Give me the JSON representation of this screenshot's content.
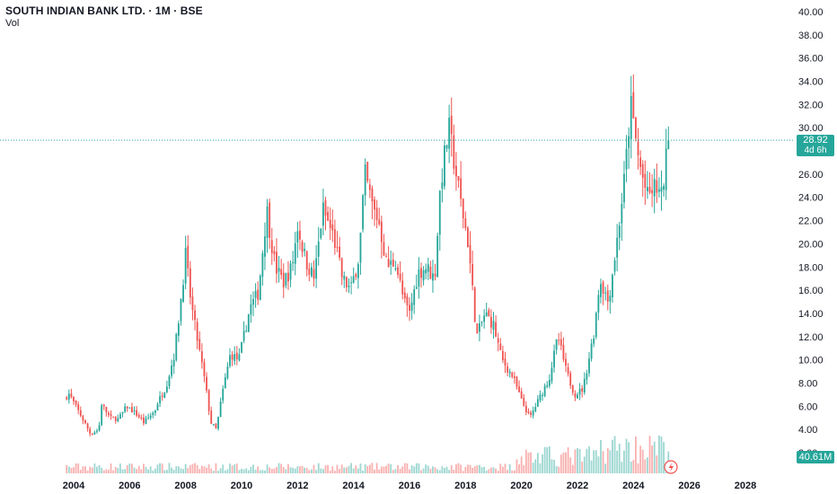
{
  "header": {
    "title": "SOUTH INDIAN BANK LTD. · 1M · BSE",
    "volume_label": "Vol"
  },
  "price_badge": {
    "price": "28.92",
    "countdown": "4d 6h"
  },
  "volume_badge": {
    "value": "40.61M"
  },
  "colors": {
    "up": "#26a69a",
    "down": "#ef5350",
    "price_line": "#26a69a"
  },
  "chart_data": {
    "type": "candlestick",
    "symbol": "SOUTH INDIAN BANK LTD.",
    "interval": "1M",
    "exchange": "BSE",
    "current_price": 28.92,
    "current_volume": "40.61M",
    "y_ticks": [
      "40.00",
      "38.00",
      "36.00",
      "34.00",
      "32.00",
      "30.00",
      "26.00",
      "24.00",
      "22.00",
      "20.00",
      "18.00",
      "16.00",
      "14.00",
      "12.00",
      "10.00",
      "8.00",
      "6.00",
      "4.00",
      "2.00"
    ],
    "y_range": [
      2,
      40
    ],
    "x_ticks": [
      "2004",
      "2006",
      "2008",
      "2010",
      "2012",
      "2014",
      "2016",
      "2018",
      "2020",
      "2022",
      "2024",
      "2026",
      "2028"
    ],
    "x_range": [
      2003.75,
      2029.3
    ],
    "price_path": [
      [
        2003.5,
        5.3
      ],
      [
        2003.8,
        7.2
      ],
      [
        2004.3,
        5.0
      ],
      [
        2004.6,
        3.6
      ],
      [
        2004.9,
        4.0
      ],
      [
        2005.0,
        6.2
      ],
      [
        2005.3,
        5.0
      ],
      [
        2005.6,
        4.9
      ],
      [
        2005.9,
        6.0
      ],
      [
        2006.3,
        5.2
      ],
      [
        2006.5,
        4.6
      ],
      [
        2006.9,
        5.6
      ],
      [
        2007.0,
        6.3
      ],
      [
        2007.3,
        7.7
      ],
      [
        2007.6,
        10.5
      ],
      [
        2007.8,
        14.5
      ],
      [
        2008.0,
        19.0
      ],
      [
        2008.2,
        14.8
      ],
      [
        2008.4,
        12.0
      ],
      [
        2008.7,
        8.0
      ],
      [
        2008.9,
        4.6
      ],
      [
        2009.1,
        4.0
      ],
      [
        2009.3,
        7.0
      ],
      [
        2009.6,
        10.5
      ],
      [
        2009.9,
        10.0
      ],
      [
        2010.3,
        14.5
      ],
      [
        2010.6,
        15.8
      ],
      [
        2010.9,
        23.0
      ],
      [
        2011.2,
        18.0
      ],
      [
        2011.5,
        16.7
      ],
      [
        2011.8,
        18.0
      ],
      [
        2012.0,
        21.5
      ],
      [
        2012.3,
        18.5
      ],
      [
        2012.6,
        17.0
      ],
      [
        2012.9,
        23.0
      ],
      [
        2013.3,
        20.5
      ],
      [
        2013.6,
        17.0
      ],
      [
        2013.9,
        16.0
      ],
      [
        2014.2,
        19.0
      ],
      [
        2014.4,
        26.0
      ],
      [
        2014.7,
        23.0
      ],
      [
        2014.9,
        22.0
      ],
      [
        2015.2,
        18.0
      ],
      [
        2015.5,
        18.5
      ],
      [
        2015.8,
        15.0
      ],
      [
        2016.0,
        14.0
      ],
      [
        2016.3,
        17.5
      ],
      [
        2016.6,
        18.0
      ],
      [
        2016.9,
        17.0
      ],
      [
        2017.1,
        25.0
      ],
      [
        2017.4,
        30.0
      ],
      [
        2017.6,
        27.0
      ],
      [
        2017.8,
        24.0
      ],
      [
        2018.1,
        20.0
      ],
      [
        2018.4,
        12.0
      ],
      [
        2018.7,
        14.0
      ],
      [
        2019.0,
        13.0
      ],
      [
        2019.3,
        10.0
      ],
      [
        2019.7,
        8.5
      ],
      [
        2020.0,
        6.5
      ],
      [
        2020.3,
        5.0
      ],
      [
        2020.7,
        7.0
      ],
      [
        2021.0,
        8.5
      ],
      [
        2021.3,
        12.0
      ],
      [
        2021.6,
        9.0
      ],
      [
        2021.9,
        7.0
      ],
      [
        2022.2,
        7.5
      ],
      [
        2022.6,
        12.5
      ],
      [
        2022.8,
        17.0
      ],
      [
        2023.1,
        15.0
      ],
      [
        2023.4,
        20.0
      ],
      [
        2023.7,
        26.0
      ],
      [
        2023.9,
        32.0
      ],
      [
        2024.2,
        27.0
      ],
      [
        2024.5,
        24.0
      ],
      [
        2024.8,
        25.0
      ],
      [
        2025.0,
        24.0
      ],
      [
        2025.25,
        28.92
      ]
    ]
  }
}
